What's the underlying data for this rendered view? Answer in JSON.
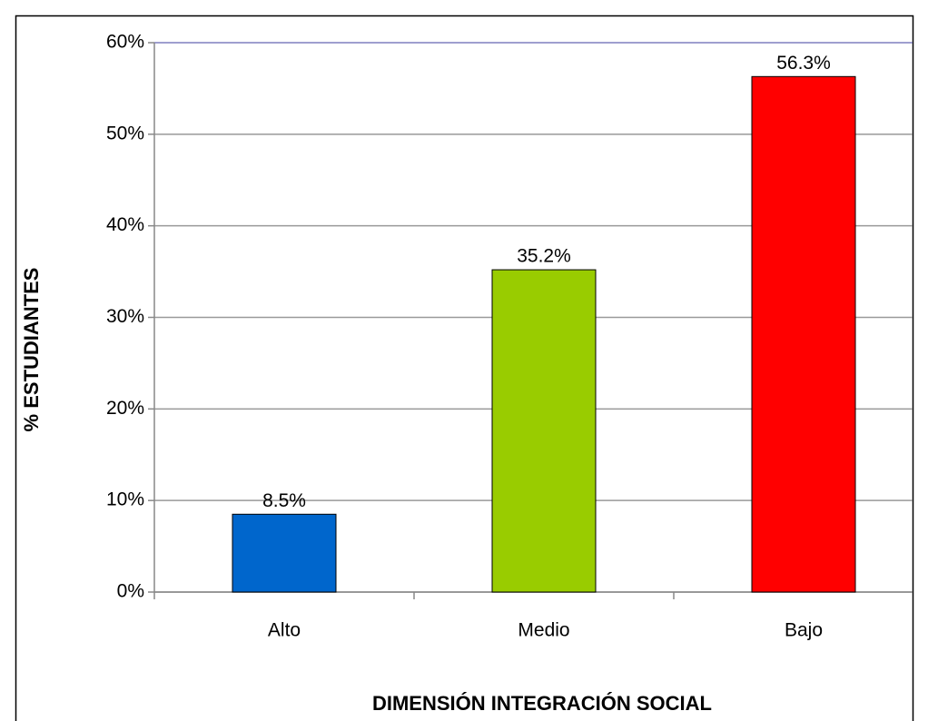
{
  "chart_data": {
    "type": "bar",
    "categories": [
      "Alto",
      "Medio",
      "Bajo"
    ],
    "values": [
      8.5,
      35.2,
      56.3
    ],
    "value_labels": [
      "8.5%",
      "35.2%",
      "56.3%"
    ],
    "colors": [
      "#0066cc",
      "#99cc00",
      "#ff0000"
    ],
    "x_label": "DIMENSIÓN INTEGRACIÓN SOCIAL",
    "y_label": "% ESTUDIANTES",
    "ylim": [
      0,
      60
    ],
    "yticks": [
      {
        "value": 0,
        "label": "0%"
      },
      {
        "value": 10,
        "label": "10%"
      },
      {
        "value": 20,
        "label": "20%"
      },
      {
        "value": 30,
        "label": "30%"
      },
      {
        "value": 40,
        "label": "40%"
      },
      {
        "value": 50,
        "label": "50%"
      },
      {
        "value": 60,
        "label": "60%"
      }
    ],
    "grid": true
  }
}
